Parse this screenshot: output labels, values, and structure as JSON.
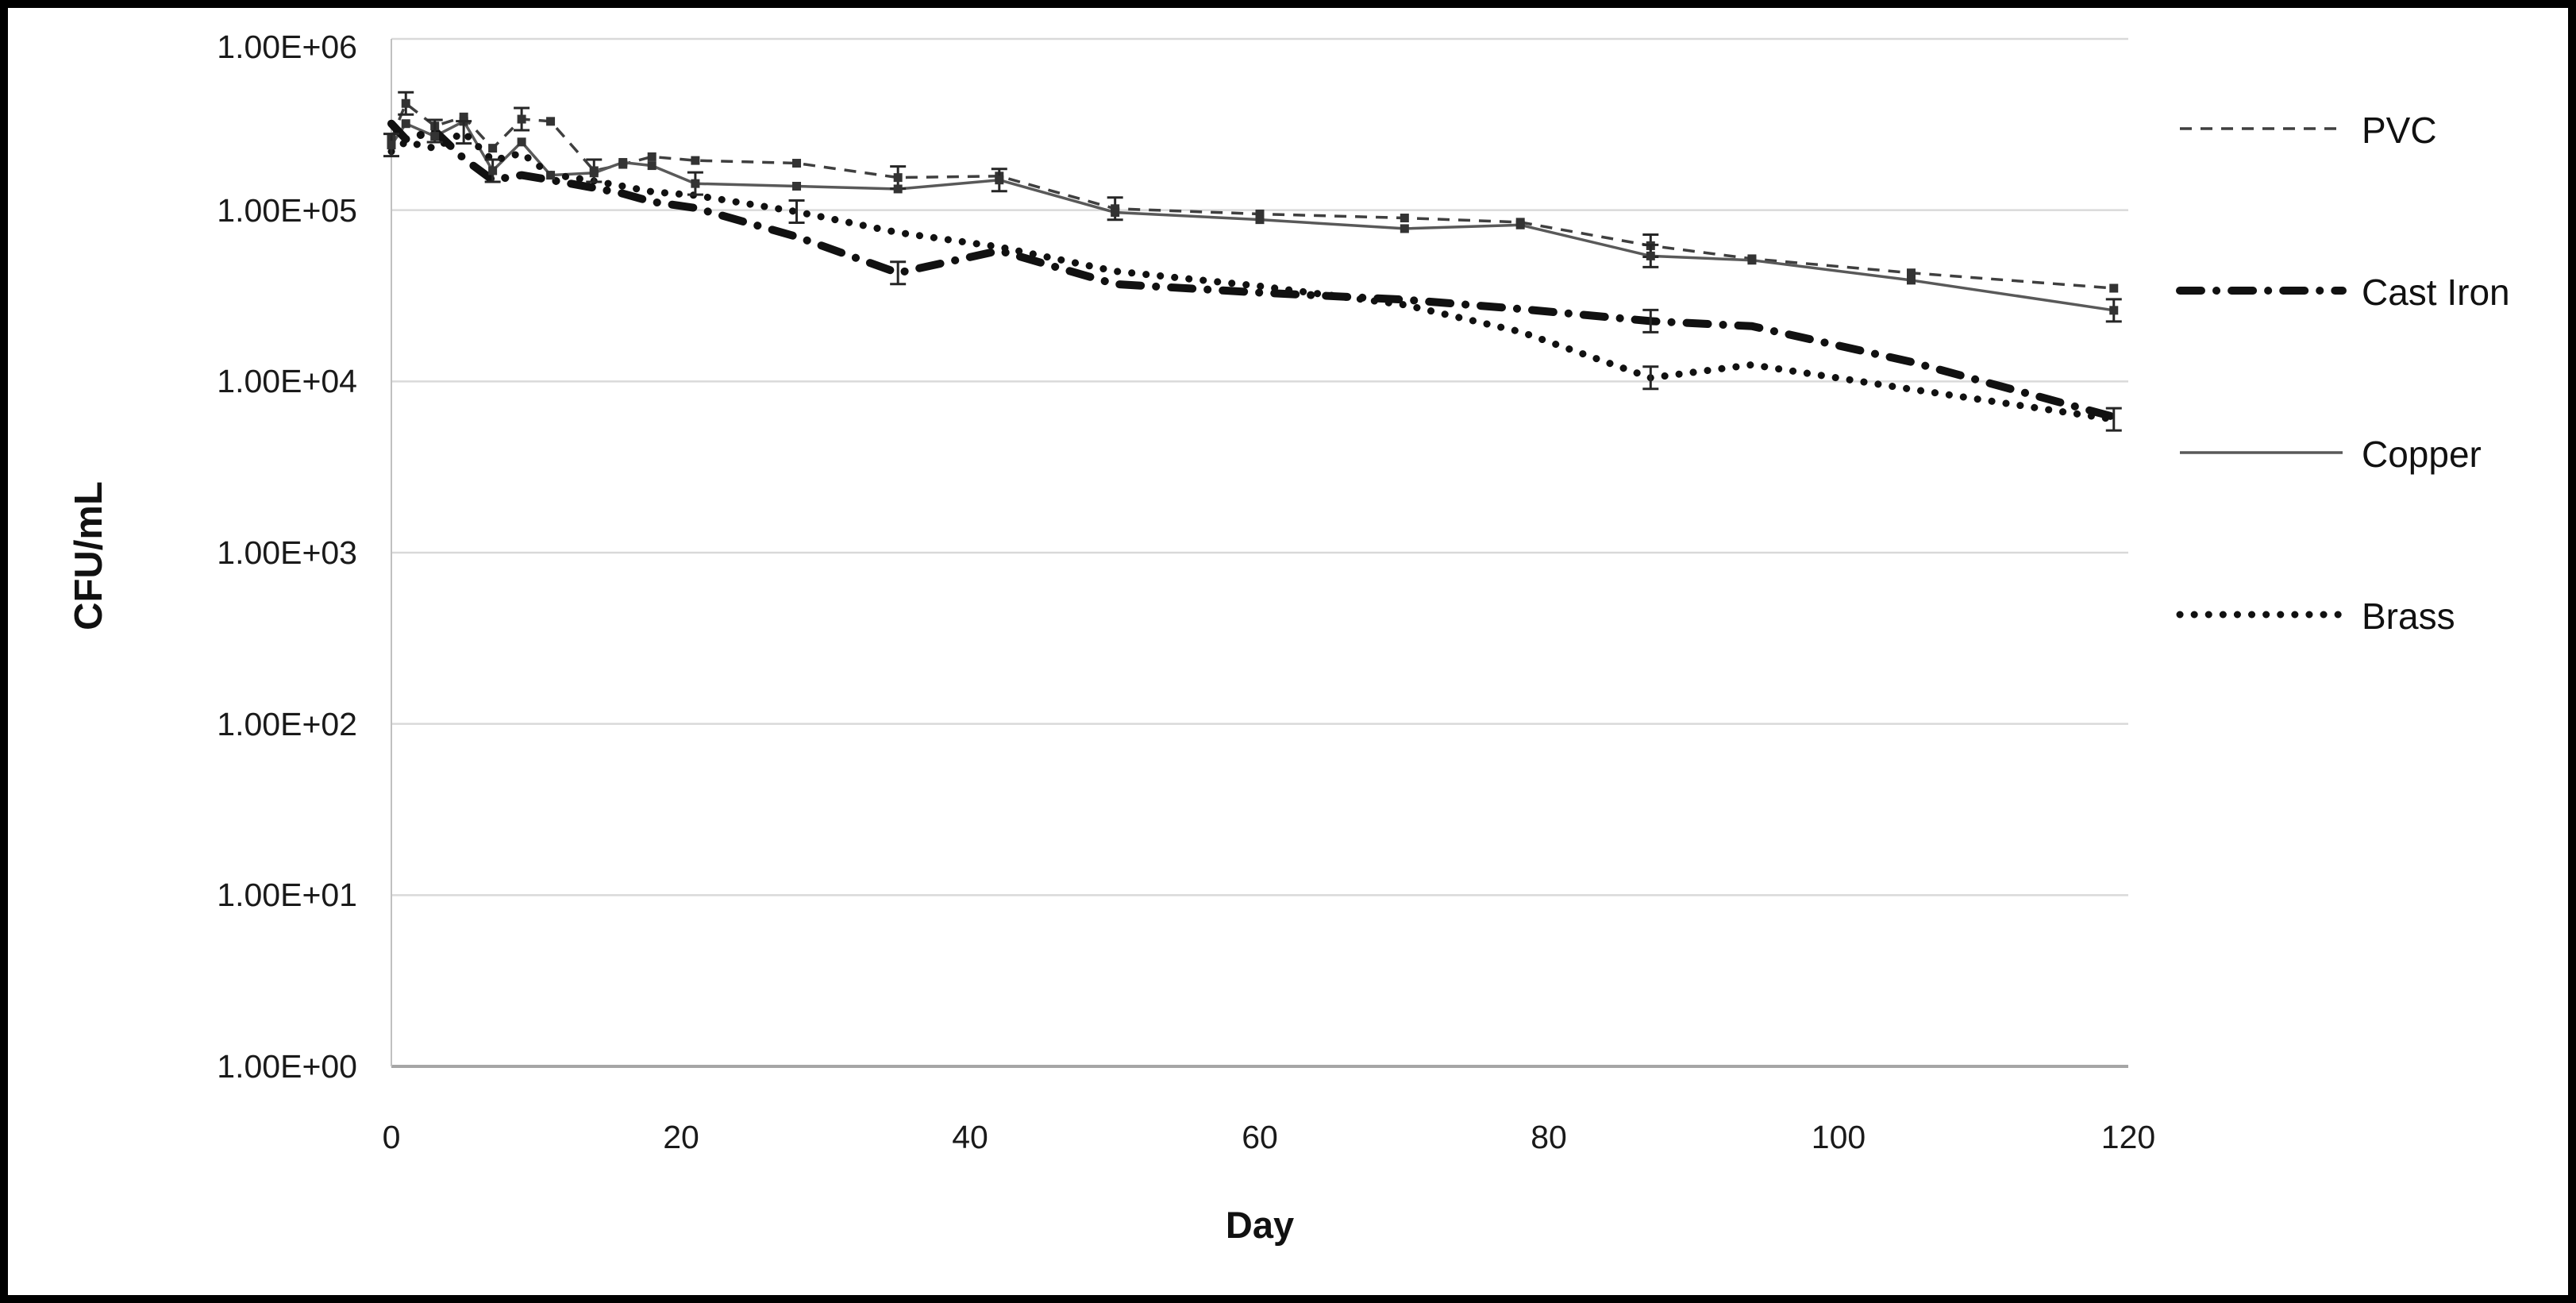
{
  "chart_data": {
    "type": "line",
    "title": "",
    "xlabel": "Day",
    "ylabel": "CFU/mL",
    "grid": "horizontal-major-gridlines",
    "legend_position": "right",
    "x_axis": {
      "min": 0,
      "max": 120,
      "tick_labels": [
        "0",
        "20",
        "40",
        "60",
        "80",
        "100",
        "120"
      ]
    },
    "y_axis": {
      "scale": "log10",
      "min": 1,
      "max": 1000000,
      "tick_labels": [
        "1.00E+06",
        "1.00E+05",
        "1.00E+04",
        "1.00E+03",
        "1.00E+02",
        "1.00E+01",
        "1.00E+00"
      ]
    },
    "x_days": [
      0,
      1,
      3,
      5,
      7,
      9,
      11,
      14,
      16,
      18,
      21,
      28,
      35,
      42,
      50,
      60,
      70,
      78,
      87,
      94,
      105,
      119
    ],
    "series": [
      {
        "name": "PVC",
        "style": "thin-dashed",
        "color": "#3f3f3f",
        "markers": true,
        "values": [
          260000,
          420000,
          310000,
          350000,
          230000,
          340000,
          330000,
          170000,
          185000,
          205000,
          195000,
          188000,
          155000,
          158000,
          102000,
          95000,
          90000,
          85000,
          62000,
          52000,
          43000,
          35000
        ],
        "error_bar_days": [
          1,
          9,
          14,
          35,
          50,
          87
        ]
      },
      {
        "name": "Cast Iron",
        "style": "thick-dash-dot",
        "color": "#111111",
        "markers": false,
        "values": [
          320000,
          260000,
          290000,
          200000,
          150000,
          160000,
          150000,
          135000,
          125000,
          112000,
          103000,
          70000,
          43000,
          58000,
          37000,
          33000,
          30000,
          26500,
          22500,
          21000,
          13000,
          6200
        ],
        "error_bar_days": [
          3,
          35,
          87
        ]
      },
      {
        "name": "Copper",
        "style": "thin-solid",
        "color": "#595959",
        "markers": true,
        "values": [
          240000,
          320000,
          270000,
          330000,
          170000,
          250000,
          160000,
          165000,
          190000,
          182000,
          143000,
          138000,
          133000,
          150000,
          97000,
          88000,
          78000,
          82000,
          54000,
          51000,
          39000,
          26000
        ],
        "error_bar_days": [
          0,
          7,
          21,
          42,
          87,
          119
        ]
      },
      {
        "name": "Brass",
        "style": "thick-dotted",
        "color": "#111111",
        "markers": false,
        "values": [
          220000,
          250000,
          230000,
          285000,
          195000,
          215000,
          162000,
          148000,
          138000,
          128000,
          122000,
          98000,
          74000,
          61000,
          44000,
          36000,
          28000,
          19500,
          10500,
          12500,
          9000,
          6000
        ],
        "error_bar_days": [
          5,
          28,
          87,
          119
        ]
      }
    ]
  },
  "colors": {
    "background": "#ffffff",
    "outer_border": "#000000",
    "gridline": "#d9d9d9",
    "axis_line": "#a6a6a6",
    "error_bar": "#262626",
    "text": "#1a1a1a"
  }
}
